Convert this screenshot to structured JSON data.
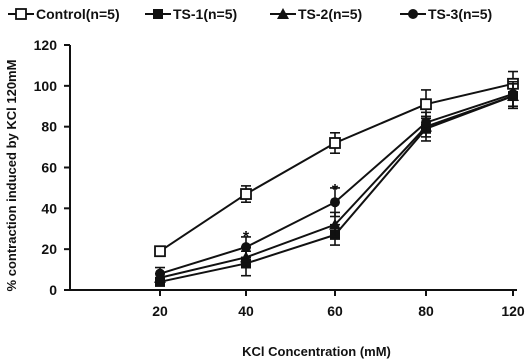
{
  "chart_data": {
    "type": "line",
    "xlabel": "KCl Concentration (mM)",
    "ylabel": "% contraction induced by KCl 120mM",
    "x_tick_labels": [
      "20",
      "40",
      "60",
      "80",
      "120"
    ],
    "y_ticks": [
      0,
      20,
      40,
      60,
      80,
      100,
      120
    ],
    "ylim": [
      0,
      120
    ],
    "grid": false,
    "legend_position": "top",
    "series": [
      {
        "name": "Control(n=5)",
        "marker": "open-square",
        "values": [
          19,
          47,
          72,
          91,
          101
        ],
        "errors": [
          2,
          4,
          5,
          7,
          6
        ]
      },
      {
        "name": "TS-1(n=5)",
        "marker": "filled-square",
        "values": [
          4,
          13,
          27,
          79,
          95
        ],
        "errors": [
          2,
          6,
          5,
          6,
          6
        ]
      },
      {
        "name": "TS-2(n=5)",
        "marker": "filled-triangle",
        "values": [
          6,
          16,
          32,
          80,
          95
        ],
        "errors": [
          2,
          5,
          6,
          5,
          6
        ]
      },
      {
        "name": "TS-3(n=5)",
        "marker": "filled-circle",
        "values": [
          8,
          21,
          43,
          82,
          96
        ],
        "errors": [
          3,
          5,
          7,
          5,
          6
        ]
      }
    ],
    "annotations": [
      {
        "x": "40",
        "y": 28,
        "text": "*"
      },
      {
        "x": "60",
        "y": 51,
        "text": "*"
      }
    ]
  }
}
